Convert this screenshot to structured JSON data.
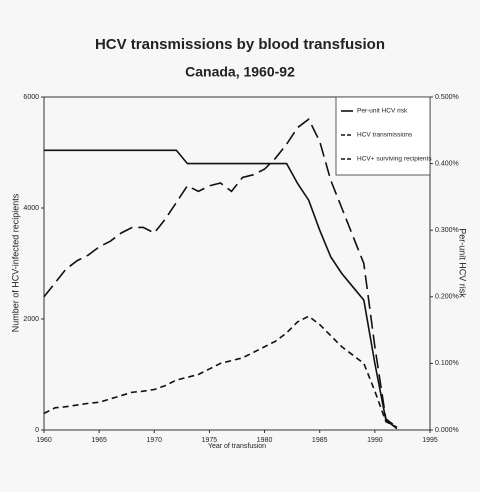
{
  "chart_data": {
    "type": "line",
    "title": "HCV transmissions by blood transfusion",
    "subtitle": "Canada, 1960-92",
    "x_label": "Year of transfusion",
    "y_label": "Number of HCV-infected recipients",
    "y2_label": "Per-unit HCV risk",
    "x": [
      1960,
      1961,
      1962,
      1963,
      1964,
      1965,
      1966,
      1967,
      1968,
      1969,
      1970,
      1971,
      1972,
      1973,
      1974,
      1975,
      1976,
      1977,
      1978,
      1979,
      1980,
      1981,
      1982,
      1983,
      1984,
      1985,
      1986,
      1987,
      1988,
      1989,
      1990,
      1991,
      1992
    ],
    "xlim": [
      1960,
      1995
    ],
    "xticks": [
      1960,
      1965,
      1970,
      1975,
      1980,
      1985,
      1990,
      1995
    ],
    "ylim": [
      0,
      6000
    ],
    "yticks": [
      0,
      2000,
      4000,
      6000
    ],
    "y2lim": [
      0,
      0.5
    ],
    "y2ticks": [
      {
        "value": 0,
        "label": "0.000%"
      },
      {
        "value": 0.1,
        "label": "0.100%"
      },
      {
        "value": 0.2,
        "label": "0.200%"
      },
      {
        "value": 0.3,
        "label": "0.300%"
      },
      {
        "value": 0.4,
        "label": "0.400%"
      },
      {
        "value": 0.5,
        "label": "0.500%"
      }
    ],
    "legend": "top-right",
    "series": [
      {
        "name": "Per-unit HCV risk",
        "color": "#111111",
        "dash": "solid",
        "axis": "y2",
        "values": [
          0.42,
          0.42,
          0.42,
          0.42,
          0.42,
          0.42,
          0.42,
          0.42,
          0.42,
          0.42,
          0.42,
          0.42,
          0.42,
          0.4,
          0.4,
          0.4,
          0.4,
          0.4,
          0.4,
          0.4,
          0.4,
          0.4,
          0.4,
          0.37,
          0.345,
          0.3,
          0.26,
          0.235,
          0.215,
          0.195,
          0.1,
          0.015,
          0.002
        ]
      },
      {
        "name": "HCV transmissions",
        "color": "#111111",
        "dash": "long",
        "values": [
          2400,
          2650,
          2900,
          3050,
          3150,
          3300,
          3400,
          3550,
          3650,
          3650,
          3550,
          3800,
          4100,
          4400,
          4300,
          4400,
          4450,
          4300,
          4550,
          4600,
          4700,
          4900,
          5150,
          5450,
          5600,
          5200,
          4500,
          4000,
          3500,
          3000,
          1500,
          200,
          50
        ]
      },
      {
        "name": "HCV+ surviving recipients",
        "color": "#111111",
        "dash": "short",
        "values": [
          300,
          400,
          420,
          450,
          480,
          500,
          560,
          620,
          680,
          700,
          730,
          800,
          900,
          950,
          1000,
          1100,
          1200,
          1250,
          1300,
          1400,
          1500,
          1600,
          1750,
          1950,
          2050,
          1900,
          1700,
          1500,
          1350,
          1200,
          700,
          150,
          50
        ]
      }
    ]
  }
}
